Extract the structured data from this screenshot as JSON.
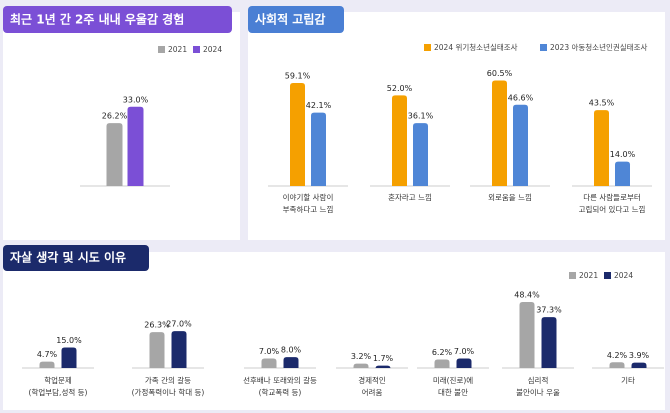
{
  "chart_data": [
    {
      "type": "bar",
      "title": "최근 1년 간 2주 내내 우울감 경험",
      "categories": [
        null
      ],
      "series": [
        {
          "name": "2021",
          "color": "#a6a6a6",
          "values": [
            26.2
          ],
          "value_labels": [
            "26.2%"
          ]
        },
        {
          "name": "2024",
          "color": "#7b4fd6",
          "values": [
            33.0
          ],
          "value_labels": [
            "33.0%"
          ]
        }
      ],
      "ylim": [
        0,
        45
      ]
    },
    {
      "type": "bar",
      "title": "사회적 고립감",
      "categories": [
        [
          "이야기할 사람이",
          "부족하다고 느낌"
        ],
        [
          "혼자라고 느낌"
        ],
        [
          "외로움을 느낌"
        ],
        [
          "다른 사람들로부터",
          "고립되어 있다고 느낌"
        ]
      ],
      "series": [
        {
          "name": "2024 위기청소년실태조사",
          "color": "#f5a000",
          "values": [
            59.1,
            52.0,
            60.5,
            43.5
          ],
          "value_labels": [
            "59.1%",
            "52.0%",
            "60.5%",
            "43.5%"
          ]
        },
        {
          "name": "2023 아동청소년인권실태조사",
          "color": "#4f86d6",
          "values": [
            42.1,
            36.1,
            46.6,
            14.0
          ],
          "value_labels": [
            "42.1%",
            "36.1%",
            "46.6%",
            "14.0%"
          ]
        }
      ],
      "ylim": [
        0,
        70
      ]
    },
    {
      "type": "bar",
      "title": "자살 생각 및 시도 이유",
      "categories": [
        [
          "학업문제",
          "(학업부담,성적 등)"
        ],
        [
          "가족 간의 갈등",
          "(가정폭력이나 학대 등)"
        ],
        [
          "선후배나 또래와의 갈등",
          "(학교폭력 등)"
        ],
        [
          "경제적인",
          "어려움"
        ],
        [
          "미래(진로)에",
          "대한 불안"
        ],
        [
          "심리적",
          "불안이나 우울"
        ],
        [
          "기타"
        ]
      ],
      "series": [
        {
          "name": "2021",
          "color": "#a6a6a6",
          "values": [
            4.7,
            26.3,
            7.0,
            3.2,
            6.2,
            48.4,
            4.2
          ],
          "value_labels": [
            "4.7%",
            "26.3%",
            "7.0%",
            "3.2%",
            "6.2%",
            "48.4%",
            "4.2%"
          ]
        },
        {
          "name": "2024",
          "color": "#1b2a6b",
          "values": [
            15.0,
            27.0,
            8.0,
            1.7,
            7.0,
            37.3,
            3.9
          ],
          "value_labels": [
            "15.0%",
            "27.0%",
            "8.0%",
            "1.7%",
            "7.0%",
            "37.3%",
            "3.9%"
          ]
        }
      ],
      "ylim": [
        0,
        55
      ]
    }
  ]
}
